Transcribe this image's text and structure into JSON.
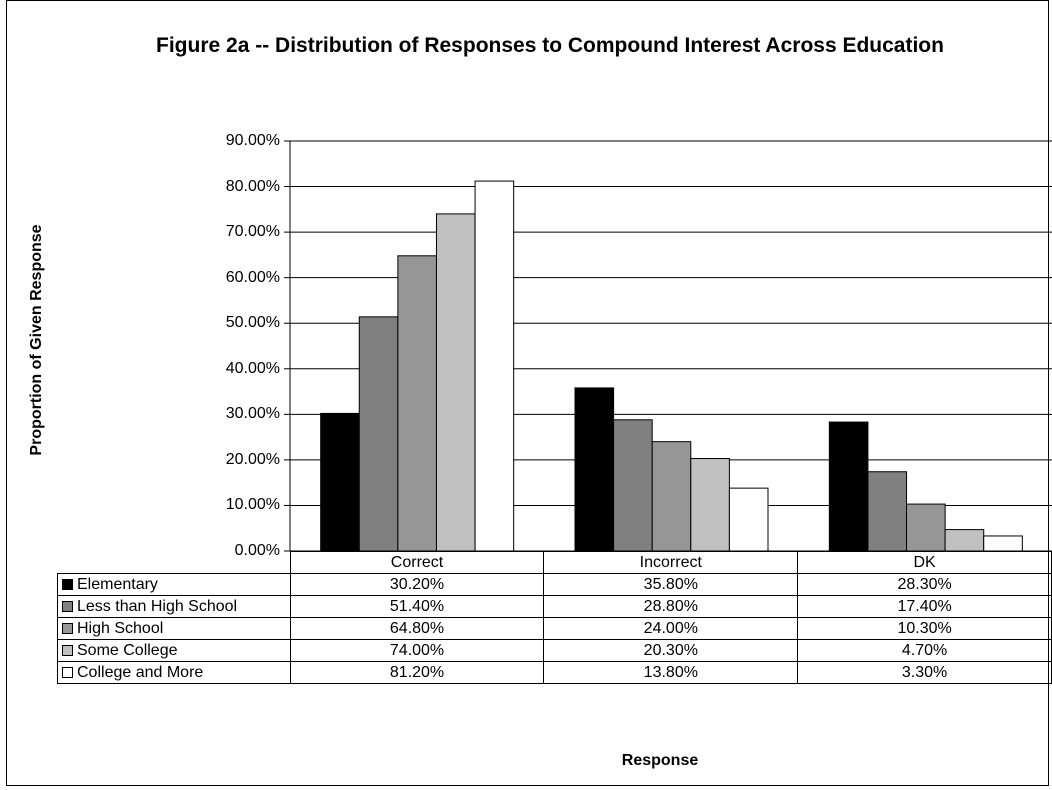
{
  "chart_data": {
    "type": "bar",
    "title": "Figure 2a -- Distribution of Responses to Compound Interest Across Education",
    "xlabel": "Response",
    "ylabel": "Proportion of Given Response",
    "ylim": [
      0,
      90
    ],
    "yticks": [
      "0.00%",
      "10.00%",
      "20.00%",
      "30.00%",
      "40.00%",
      "50.00%",
      "60.00%",
      "70.00%",
      "80.00%",
      "90.00%"
    ],
    "grid": true,
    "legend": "data table below plot",
    "categories": [
      "Correct",
      "Incorrect",
      "DK"
    ],
    "series": [
      {
        "name": "Elementary",
        "color": "#000000",
        "values": [
          30.2,
          35.8,
          28.3
        ],
        "labels": [
          "30.20%",
          "35.80%",
          "28.30%"
        ]
      },
      {
        "name": "Less than High School",
        "color": "#808080",
        "values": [
          51.4,
          28.8,
          17.4
        ],
        "labels": [
          "51.40%",
          "28.80%",
          "17.40%"
        ]
      },
      {
        "name": "High School",
        "color": "#969696",
        "values": [
          64.8,
          24.0,
          10.3
        ],
        "labels": [
          "64.80%",
          "24.00%",
          "10.30%"
        ]
      },
      {
        "name": "Some College",
        "color": "#c0c0c0",
        "values": [
          74.0,
          20.3,
          4.7
        ],
        "labels": [
          "74.00%",
          "20.30%",
          "4.70%"
        ]
      },
      {
        "name": "College and More",
        "color": "#ffffff",
        "values": [
          81.2,
          13.8,
          3.3
        ],
        "labels": [
          "81.20%",
          "13.80%",
          "3.30%"
        ]
      }
    ]
  }
}
